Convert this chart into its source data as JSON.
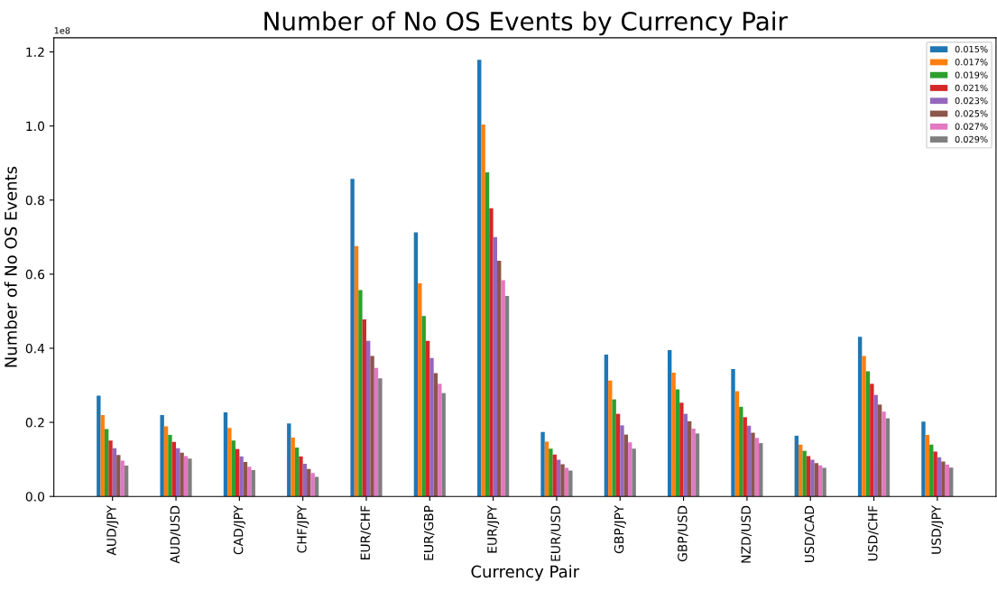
{
  "chart_data": {
    "type": "bar",
    "title": "Number of No OS Events by Currency Pair",
    "xlabel": "Currency Pair",
    "ylabel": "Number of No OS Events",
    "annotations": [
      "1e8"
    ],
    "categories": [
      "AUD/JPY",
      "AUD/USD",
      "CAD/JPY",
      "CHF/JPY",
      "EUR/CHF",
      "EUR/GBP",
      "EUR/JPY",
      "EUR/USD",
      "GBP/JPY",
      "GBP/USD",
      "NZD/USD",
      "USD/CAD",
      "USD/CHF",
      "USD/JPY"
    ],
    "series": [
      {
        "name": "0.015%",
        "color": "#1f77b4",
        "values": [
          0.272,
          0.22,
          0.227,
          0.197,
          0.857,
          0.713,
          1.179,
          0.174,
          0.383,
          0.395,
          0.344,
          0.164,
          0.431,
          0.202
        ]
      },
      {
        "name": "0.017%",
        "color": "#ff7f0e",
        "values": [
          0.22,
          0.189,
          0.185,
          0.159,
          0.676,
          0.575,
          1.004,
          0.148,
          0.313,
          0.334,
          0.284,
          0.14,
          0.379,
          0.166
        ]
      },
      {
        "name": "0.019%",
        "color": "#2ca02c",
        "values": [
          0.182,
          0.166,
          0.151,
          0.132,
          0.557,
          0.487,
          0.875,
          0.129,
          0.262,
          0.289,
          0.242,
          0.123,
          0.338,
          0.14
        ]
      },
      {
        "name": "0.021%",
        "color": "#d62728",
        "values": [
          0.151,
          0.147,
          0.128,
          0.108,
          0.478,
          0.42,
          0.778,
          0.113,
          0.223,
          0.253,
          0.214,
          0.109,
          0.304,
          0.121
        ]
      },
      {
        "name": "0.023%",
        "color": "#9467bd",
        "values": [
          0.13,
          0.13,
          0.108,
          0.088,
          0.42,
          0.374,
          0.7,
          0.099,
          0.192,
          0.223,
          0.191,
          0.099,
          0.274,
          0.106
        ]
      },
      {
        "name": "0.025%",
        "color": "#8c564b",
        "values": [
          0.112,
          0.118,
          0.093,
          0.074,
          0.379,
          0.333,
          0.636,
          0.087,
          0.167,
          0.203,
          0.172,
          0.09,
          0.248,
          0.094
        ]
      },
      {
        "name": "0.027%",
        "color": "#e377c2",
        "values": [
          0.097,
          0.109,
          0.08,
          0.063,
          0.347,
          0.304,
          0.584,
          0.077,
          0.146,
          0.183,
          0.158,
          0.084,
          0.229,
          0.086
        ]
      },
      {
        "name": "0.029%",
        "color": "#7f7f7f",
        "values": [
          0.083,
          0.102,
          0.071,
          0.053,
          0.319,
          0.279,
          0.541,
          0.07,
          0.129,
          0.17,
          0.144,
          0.077,
          0.211,
          0.078
        ]
      }
    ],
    "ylim": [
      0,
      1.238
    ],
    "yticks": [
      {
        "value": 0,
        "label": "0.0"
      },
      0.2,
      0.4,
      0.6,
      0.8,
      {
        "value": 1.0,
        "label": "1.0"
      },
      1.2
    ],
    "legend": "top right",
    "grid": false
  }
}
